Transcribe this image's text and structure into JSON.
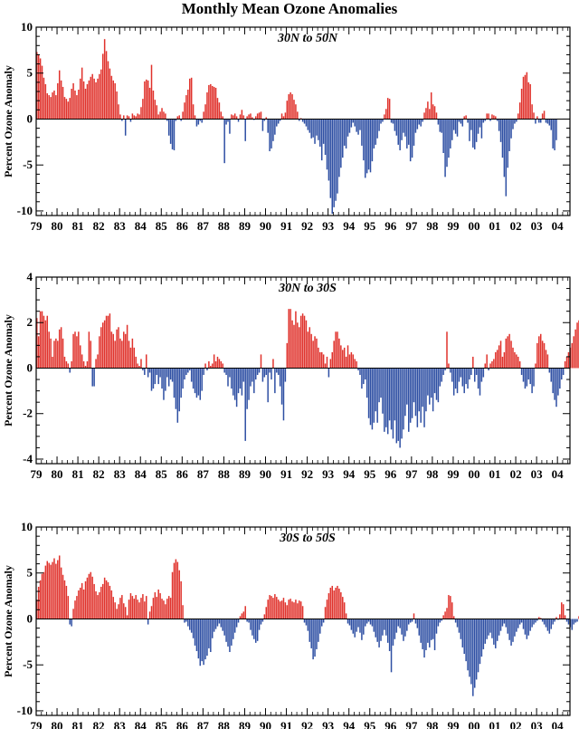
{
  "title": "Monthly Mean Ozone Anomalies",
  "colors": {
    "positive": "#e0322c",
    "negative": "#2e4fa3"
  },
  "chart_data": [
    {
      "type": "bar",
      "title": "30N to 50N",
      "ylabel": "Percent Ozone Anomaly",
      "ylim": [
        -10.5,
        10
      ],
      "yticks": [
        10,
        5,
        0,
        -5,
        -10
      ],
      "x_start": 1979.0,
      "x_end": 2004.6,
      "x_step": 0.0833333,
      "xtick_labels": [
        "79",
        "80",
        "81",
        "82",
        "83",
        "84",
        "85",
        "86",
        "87",
        "88",
        "89",
        "90",
        "91",
        "92",
        "93",
        "94",
        "95",
        "96",
        "97",
        "98",
        "99",
        "00",
        "01",
        "02",
        "03",
        "04"
      ],
      "values": [
        7.3,
        7.0,
        6.6,
        5.8,
        4.5,
        3.8,
        2.8,
        2.6,
        2.4,
        2.9,
        3.1,
        2.6,
        3.9,
        5.3,
        4.2,
        3.5,
        2.4,
        2.2,
        1.9,
        2.3,
        3.3,
        3.9,
        3.1,
        2.6,
        3.2,
        4.4,
        5.6,
        4.1,
        3.3,
        3.8,
        4.2,
        4.6,
        4.9,
        4.4,
        4.0,
        4.4,
        4.9,
        5.4,
        7.1,
        8.7,
        7.4,
        6.3,
        5.5,
        4.7,
        4.2,
        3.9,
        3.0,
        1.6,
        0.5,
        -0.2,
        0.4,
        -1.8,
        0.4,
        0.3,
        -0.3,
        0.6,
        0.4,
        0.3,
        0.6,
        0.5,
        1.3,
        2.2,
        4.1,
        4.3,
        4.2,
        3.4,
        5.9,
        3.1,
        2.1,
        1.5,
        0.5,
        0.8,
        1.2,
        0.8,
        0.6,
        -0.2,
        -1.8,
        -2.7,
        -3.3,
        -3.4,
        -0.2,
        0.3,
        0.4,
        -0.2,
        0.8,
        1.8,
        2.6,
        3.2,
        4.4,
        4.5,
        1.6,
        0.4,
        -0.8,
        -0.6,
        -0.2,
        -0.4,
        0.8,
        1.6,
        2.9,
        3.7,
        3.8,
        3.6,
        3.5,
        3.4,
        2.3,
        1.8,
        0.8,
        0.3,
        -4.8,
        -0.6,
        -0.3,
        -1.6,
        0.5,
        0.4,
        0.6,
        0.3,
        -0.3,
        0.5,
        1.0,
        0.4,
        -2.4,
        0.3,
        0.5,
        0.6,
        0.2,
        -0.1,
        0.3,
        0.6,
        0.7,
        0.8,
        -1.3,
        -0.2,
        0.2,
        -1.5,
        -3.5,
        -3.2,
        -2.4,
        -1.7,
        -0.8,
        -0.5,
        -0.2,
        0.6,
        0.3,
        0.7,
        2.0,
        2.7,
        2.9,
        2.7,
        2.1,
        1.6,
        0.8,
        -0.2,
        0.1,
        -0.3,
        -0.5,
        -0.8,
        -1.2,
        -1.5,
        -2.1,
        -2.0,
        -2.7,
        -1.8,
        -2.3,
        -3.0,
        -4.5,
        -2.7,
        -3.9,
        -5.5,
        -6.7,
        -8.6,
        -10.3,
        -9.6,
        -8.9,
        -8.1,
        -6.3,
        -5.3,
        -4.2,
        -2.9,
        -3.2,
        -1.9,
        -1.5,
        -0.9,
        -0.4,
        -0.8,
        -1.4,
        -1.7,
        -1.2,
        -2.9,
        -4.5,
        -6.4,
        -5.9,
        -5.5,
        -5.8,
        -4.6,
        -3.2,
        -2.8,
        -2.1,
        -1.3,
        -0.5,
        -0.3,
        0.5,
        1.1,
        2.3,
        2.2,
        -0.4,
        -0.5,
        -1.3,
        -1.8,
        -2.8,
        -3.4,
        -2.3,
        -1.5,
        -1.9,
        -3.2,
        -2.8,
        -4.6,
        -4.2,
        -2.9,
        -1.5,
        -1.1,
        -0.6,
        -0.8,
        -0.3,
        0.7,
        1.2,
        1.9,
        1.1,
        2.9,
        1.6,
        1.4,
        0.7,
        -0.6,
        -1.4,
        -1.5,
        -3.7,
        -6.3,
        -5.2,
        -4.2,
        -3.2,
        -2.3,
        -1.2,
        -1.6,
        -1.9,
        -0.3,
        -0.5,
        -0.8,
        0.3,
        0.4,
        -0.4,
        -2.4,
        -1.2,
        -3.1,
        -3.3,
        -2.5,
        -1.6,
        -0.9,
        -2.1,
        -0.4,
        -0.2,
        0.6,
        0.6,
        -0.2,
        0.5,
        0.4,
        0.3,
        -0.2,
        -1.3,
        -2.5,
        -4.2,
        -6.3,
        -8.4,
        -5.3,
        -3.5,
        -2.1,
        -1.1,
        -0.5,
        -0.3,
        0.6,
        1.8,
        3.3,
        4.6,
        4.8,
        5.1,
        4.0,
        3.8,
        1.6,
        0.7,
        -0.5,
        0.3,
        -0.4,
        -0.4,
        0.6,
        0.9,
        -0.4,
        -0.5,
        -0.7,
        -1.2,
        -3.2,
        -3.4,
        -2.3
      ]
    },
    {
      "type": "bar",
      "title": "30N to 30S",
      "ylabel": "Percent Ozone Anomaly",
      "ylim": [
        -4.2,
        4
      ],
      "yticks": [
        4,
        2,
        0,
        -2,
        -4
      ],
      "x_start": 1979.0,
      "x_end": 2004.6,
      "x_step": 0.0833333,
      "xtick_labels": [
        "79",
        "80",
        "81",
        "82",
        "83",
        "84",
        "85",
        "86",
        "87",
        "88",
        "89",
        "90",
        "91",
        "92",
        "93",
        "94",
        "95",
        "96",
        "97",
        "98",
        "99",
        "00",
        "01",
        "02",
        "03",
        "04"
      ],
      "values": [
        2.2,
        1.4,
        2.5,
        2.5,
        2.3,
        2.1,
        2.3,
        1.6,
        1.3,
        0.5,
        1.2,
        1.3,
        1.2,
        1.7,
        1.8,
        1.3,
        0.5,
        0.3,
        0.2,
        -0.2,
        0.3,
        1.5,
        1.6,
        1.4,
        1.6,
        1.0,
        0.6,
        0.3,
        0.1,
        0.3,
        1.6,
        1.2,
        -0.8,
        -0.8,
        0.4,
        0.6,
        1.4,
        1.8,
        2.0,
        2.1,
        2.3,
        2.3,
        2.4,
        1.6,
        1.5,
        1.2,
        1.7,
        1.8,
        1.3,
        1.2,
        1.6,
        1.5,
        1.9,
        1.2,
        0.9,
        1.3,
        0.9,
        0.5,
        0.2,
        0.1,
        0.4,
        -0.1,
        -0.3,
        0.6,
        -0.4,
        -0.2,
        -1.0,
        -0.9,
        -0.7,
        -0.3,
        -0.7,
        -0.4,
        -0.9,
        -1.4,
        -1.0,
        -0.4,
        -0.8,
        -0.5,
        -0.6,
        -1.3,
        -1.8,
        -2.4,
        -1.9,
        -1.3,
        -0.9,
        -0.5,
        -0.3,
        -0.2,
        -0.1,
        -0.6,
        -0.9,
        -1.1,
        -1.3,
        -1.2,
        -1.4,
        -1.0,
        -0.3,
        0.2,
        -0.1,
        0.3,
        0.1,
        0.2,
        0.6,
        0.3,
        0.5,
        0.4,
        0.3,
        0.2,
        -0.2,
        -0.3,
        -0.8,
        -0.4,
        -0.9,
        -1.2,
        -1.4,
        -1.7,
        -1.1,
        -0.9,
        -1.2,
        -0.6,
        -3.2,
        -1.8,
        -1.4,
        -0.8,
        -0.6,
        -1.1,
        -0.5,
        -0.3,
        -0.2,
        0.6,
        -0.6,
        -0.4,
        -0.3,
        -1.5,
        -0.2,
        -0.5,
        0.4,
        -1.1,
        -0.2,
        -0.3,
        -0.8,
        -1.6,
        -2.3,
        -0.6,
        1.1,
        2.6,
        2.6,
        2.1,
        1.9,
        2.5,
        2.0,
        1.8,
        2.3,
        2.4,
        2.3,
        2.1,
        1.6,
        1.8,
        1.5,
        1.2,
        1.4,
        1.3,
        0.9,
        0.7,
        0.7,
        0.6,
        0.2,
        0.5,
        -0.4,
        0.4,
        0.7,
        1.2,
        1.6,
        1.6,
        1.3,
        1.0,
        0.8,
        0.9,
        0.5,
        1.0,
        0.6,
        0.7,
        0.6,
        0.4,
        0.3,
        -0.1,
        -0.3,
        -0.9,
        -0.7,
        -0.5,
        -1.3,
        -2.2,
        -2.5,
        -2.7,
        -2.4,
        -1.9,
        -2.4,
        -1.5,
        -1.3,
        -2.0,
        -2.8,
        -2.6,
        -2.9,
        -2.3,
        -2.7,
        -3.1,
        -2.3,
        -3.3,
        -3.2,
        -3.5,
        -3.1,
        -2.7,
        -2.1,
        -1.6,
        -2.8,
        -2.4,
        -2.2,
        -1.5,
        -2.1,
        -2.6,
        -1.9,
        -2.4,
        -1.7,
        -2.6,
        -1.9,
        -1.2,
        -1.6,
        -1.3,
        -1.9,
        -1.1,
        -1.4,
        -1.5,
        -0.8,
        -0.6,
        -0.3,
        -0.1,
        1.6,
        0.2,
        -0.2,
        -0.6,
        -1.2,
        -0.9,
        -1.1,
        -0.6,
        -0.4,
        -0.8,
        -1.1,
        -0.7,
        -0.9,
        -0.5,
        -0.3,
        0.5,
        -0.6,
        -0.3,
        -0.9,
        -1.2,
        -0.6,
        -0.4,
        0.2,
        0.6,
        -0.1,
        0.2,
        0.3,
        0.4,
        0.7,
        0.8,
        1.0,
        1.2,
        0.5,
        0.7,
        1.3,
        1.4,
        1.5,
        1.2,
        0.9,
        0.7,
        0.6,
        0.5,
        0.3,
        -0.3,
        -0.6,
        -0.9,
        -0.8,
        -0.5,
        -0.7,
        -1.1,
        -0.8,
        0.2,
        1.1,
        1.4,
        1.5,
        1.2,
        1.1,
        0.8,
        0.6,
        -0.2,
        -0.6,
        -1.1,
        -1.4,
        -1.7,
        -1.2,
        -0.9,
        -0.5,
        -0.3,
        0.3,
        0.5,
        0.7,
        0.9,
        1.1,
        1.4,
        1.7,
        2.0,
        2.1,
        1.9,
        1.7,
        1.5,
        1.3,
        0.9,
        0.6,
        0.3,
        0.5,
        0.9,
        1.1,
        1.3,
        1.4,
        1.2,
        1.0,
        0.7,
        0.5,
        0.1,
        -0.1,
        -0.7,
        -1.2,
        -0.5,
        -1.5,
        -1.1,
        -0.7,
        -0.6,
        0.3,
        0.5,
        0.4,
        0.8,
        1.0,
        1.2,
        1.3,
        1.4,
        1.5,
        1.8,
        1.7,
        1.5,
        1.6,
        1.3,
        1.1,
        0.9,
        0.7,
        0.5,
        0.3,
        -0.2,
        -0.4,
        -0.2,
        0.1,
        -0.1,
        0.4,
        0.6,
        0.9,
        1.2,
        1.1,
        0.9,
        0.6,
        0.3,
        0.2,
        0.3,
        0.6,
        0.4,
        0.9,
        1.1,
        1.2,
        1.0,
        0.8,
        0.5,
        0.4,
        -0.2,
        -0.6,
        -1.1,
        -1.2,
        -1.3,
        -0.9,
        -0.8,
        -1.4,
        -0.9,
        -0.6,
        -0.3,
        0.2,
        0.6,
        0.4,
        0.6
      ]
    },
    {
      "type": "bar",
      "title": "30S to 50S",
      "ylabel": "Percent Ozone Anomaly",
      "ylim": [
        -10.5,
        10
      ],
      "yticks": [
        10,
        5,
        0,
        -5,
        -10
      ],
      "x_start": 1979.0,
      "x_end": 2004.6,
      "x_step": 0.0833333,
      "xtick_labels": [
        "79",
        "80",
        "81",
        "82",
        "83",
        "84",
        "85",
        "86",
        "87",
        "88",
        "89",
        "90",
        "91",
        "92",
        "93",
        "94",
        "95",
        "96",
        "97",
        "98",
        "99",
        "00",
        "01",
        "02",
        "03",
        "04"
      ],
      "values": [
        2.1,
        3.5,
        4.2,
        4.9,
        5.1,
        5.8,
        6.3,
        6.1,
        5.9,
        6.2,
        6.6,
        6.0,
        6.4,
        6.9,
        5.6,
        4.8,
        4.2,
        3.6,
        2.5,
        -0.6,
        -0.8,
        1.1,
        2.0,
        2.5,
        3.1,
        3.4,
        3.9,
        3.2,
        4.1,
        4.5,
        4.9,
        5.1,
        4.6,
        3.8,
        3.0,
        2.6,
        2.9,
        3.5,
        3.8,
        4.5,
        4.2,
        4.0,
        3.6,
        3.1,
        2.4,
        1.8,
        1.1,
        1.6,
        2.3,
        2.6,
        1.7,
        1.3,
        0.4,
        2.1,
        2.8,
        2.5,
        2.2,
        2.6,
        2.1,
        1.8,
        2.3,
        2.7,
        1.9,
        2.5,
        -0.6,
        0.8,
        1.4,
        2.3,
        2.9,
        2.4,
        3.2,
        2.8,
        2.2,
        2.0,
        1.6,
        2.2,
        2.5,
        2.3,
        5.1,
        6.1,
        6.5,
        6.2,
        5.3,
        4.1,
        1.5,
        -0.4,
        -0.3,
        -0.8,
        -1.2,
        -1.5,
        -2.1,
        -2.9,
        -3.5,
        -4.3,
        -5.1,
        -4.6,
        -5.0,
        -4.4,
        -4.0,
        -3.2,
        -3.6,
        -2.1,
        -1.4,
        -1.1,
        -0.8,
        -0.5,
        -0.9,
        -1.3,
        -1.8,
        -2.5,
        -3.0,
        -3.6,
        -2.9,
        -2.2,
        -1.5,
        -0.9,
        -0.4,
        0.3,
        0.6,
        0.8,
        1.4,
        -0.3,
        -0.4,
        -1.2,
        -1.8,
        -2.2,
        -2.6,
        -2.4,
        -1.2,
        -0.6,
        -0.3,
        0.5,
        1.3,
        2.1,
        2.6,
        2.5,
        2.3,
        2.7,
        2.4,
        2.1,
        1.9,
        2.0,
        2.3,
        1.8,
        1.5,
        2.1,
        2.2,
        1.9,
        1.8,
        2.1,
        1.7,
        2.0,
        1.9,
        1.4,
        -0.4,
        -0.7,
        -1.3,
        -2.5,
        -3.2,
        -4.4,
        -4.1,
        -3.3,
        -2.5,
        -1.6,
        -0.8,
        -0.4,
        1.3,
        2.1,
        2.8,
        3.4,
        3.6,
        3.1,
        3.4,
        3.6,
        3.3,
        2.9,
        2.4,
        1.8,
        0.6,
        -0.5,
        -0.7,
        -1.2,
        -1.6,
        -2.0,
        -1.4,
        -0.9,
        -1.5,
        -2.3,
        -1.7,
        -0.8,
        -0.5,
        -0.3,
        -0.6,
        -0.8,
        -1.4,
        -2.0,
        -2.5,
        -3.1,
        -2.4,
        -1.8,
        -1.2,
        -1.8,
        -2.6,
        -3.5,
        -5.8,
        -2.9,
        -2.2,
        -1.5,
        -0.8,
        -1.0,
        -1.7,
        -2.4,
        -1.9,
        -1.3,
        -0.6,
        -0.4,
        -0.3,
        0.6,
        -0.5,
        -1.0,
        -1.8,
        -2.6,
        -3.3,
        -4.2,
        -3.4,
        -2.6,
        -3.1,
        -2.3,
        -2.2,
        -3.4,
        -1.6,
        -0.8,
        -0.4,
        -0.2,
        0.4,
        0.8,
        1.2,
        2.6,
        2.5,
        1.8,
        0.3,
        -0.4,
        -0.9,
        -1.5,
        -2.2,
        -3.1,
        -3.8,
        -4.6,
        -5.6,
        -6.3,
        -7.1,
        -8.4,
        -7.5,
        -6.6,
        -5.8,
        -4.9,
        -4.1,
        -3.3,
        -2.7,
        -2.2,
        -1.8,
        -1.5,
        -2.1,
        -2.8,
        -3.2,
        -2.4,
        -1.8,
        -1.3,
        -0.8,
        -0.5,
        -0.9,
        -1.6,
        -2.3,
        -2.9,
        -2.5,
        -1.9,
        -1.4,
        -1.0,
        -0.6,
        -0.4,
        -1.1,
        -1.7,
        -2.2,
        -1.8,
        -1.3,
        -0.9,
        -0.6,
        -0.4,
        -0.2,
        0.2,
        0.1,
        -0.3,
        -0.6,
        -0.9,
        -1.3,
        -1.6,
        -1.1,
        -0.6,
        -0.3,
        0.2,
        -0.1,
        0.5,
        1.8,
        1.6,
        0.4,
        -0.3,
        -0.6,
        -0.9,
        -1.2,
        -0.6,
        -0.4,
        -0.3,
        0.3,
        -0.4,
        -0.6,
        -0.3,
        0.5,
        0.2,
        -0.1,
        0.4,
        -0.2,
        0.6,
        0.8,
        0.5,
        0.3,
        -0.5,
        -0.3,
        0.6,
        0.7,
        0.9,
        1.6,
        -0.3,
        -0.6,
        -0.4,
        0.3,
        0.6,
        0.2,
        0.7,
        0.4,
        0.8,
        -0.2,
        -1.5,
        -2.1,
        -1.2,
        -0.6,
        -0.3,
        0.4,
        0.6,
        0.7,
        0.9,
        0.8,
        1.0,
        -0.4,
        -1.4,
        -1.1
      ]
    }
  ]
}
